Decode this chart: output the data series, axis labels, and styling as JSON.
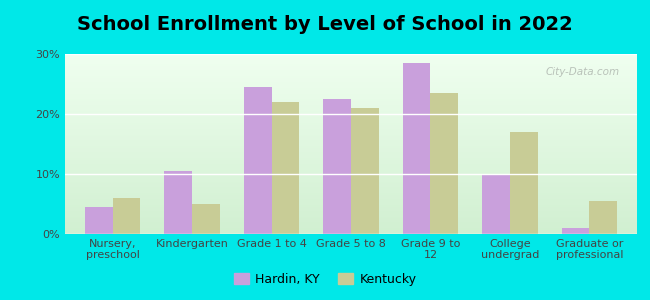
{
  "title": "School Enrollment by Level of School in 2022",
  "categories": [
    "Nursery,\npreschool",
    "Kindergarten",
    "Grade 1 to 4",
    "Grade 5 to 8",
    "Grade 9 to\n12",
    "College\nundergrad",
    "Graduate or\nprofessional"
  ],
  "hardin_values": [
    4.5,
    10.5,
    24.5,
    22.5,
    28.5,
    10.0,
    1.0
  ],
  "kentucky_values": [
    6.0,
    5.0,
    22.0,
    21.0,
    23.5,
    17.0,
    5.5
  ],
  "hardin_color": "#c9a0dc",
  "kentucky_color": "#c8cc96",
  "background_color": "#00e8e8",
  "ylim": [
    0,
    30
  ],
  "yticks": [
    0,
    10,
    20,
    30
  ],
  "ytick_labels": [
    "0%",
    "10%",
    "20%",
    "30%"
  ],
  "bar_width": 0.35,
  "title_fontsize": 14,
  "tick_fontsize": 8,
  "legend_fontsize": 9,
  "watermark_text": "City-Data.com",
  "watermark_color": "#b0b8b0",
  "legend_hardin": "Hardin, KY",
  "legend_kentucky": "Kentucky"
}
